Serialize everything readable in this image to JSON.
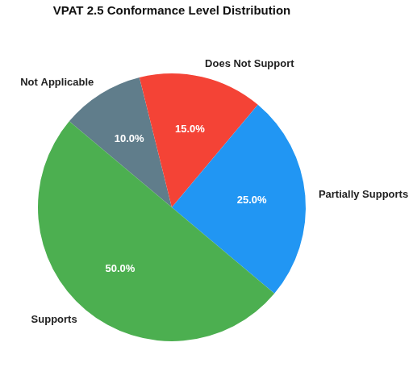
{
  "chart_data": {
    "type": "pie",
    "title": "VPAT 2.5 Conformance Level Distribution",
    "categories": [
      "Not Applicable",
      "Does Not Support",
      "Partially Supports",
      "Supports"
    ],
    "values": [
      10,
      15,
      25,
      50
    ],
    "value_labels": [
      "10.0%",
      "15.0%",
      "25.0%",
      "50.0%"
    ],
    "colors": [
      "#607d8b",
      "#f44336",
      "#2196f3",
      "#4caf50"
    ],
    "data_labels": true
  }
}
